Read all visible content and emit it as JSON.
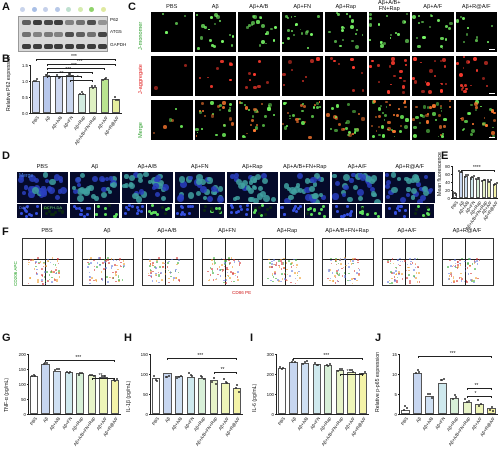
{
  "panels": {
    "a": "A",
    "b": "B",
    "c": "C",
    "d": "D",
    "e": "E",
    "f": "F",
    "g": "G",
    "h": "H",
    "i": "I",
    "j": "J"
  },
  "groups_short": [
    "PBS",
    "Aβ",
    "Aβ+A/B",
    "Aβ+FN",
    "Aβ+Rap",
    "Aβ+A/B+FN+Rap",
    "Aβ+A/F",
    "Aβ+R@A/F"
  ],
  "western": {
    "bands": [
      "P62",
      "ATG5",
      "GAPDH"
    ],
    "lane_colors": [
      "#c9d4ec",
      "#a9bfe6",
      "#c5d0ea",
      "#b7c8e8",
      "#bfe0d0",
      "#d6ecb0",
      "#8fd36a",
      "#dfe9a0"
    ]
  },
  "panel_b": {
    "ylabel": "Relative P62 expression",
    "yticks": [
      "0.0",
      "0.5",
      "1.0",
      "1.5"
    ],
    "ylim": [
      0,
      1.5
    ],
    "categories": [
      "PBS",
      "Aβ",
      "Aβ+A/B",
      "Aβ+FN",
      "Aβ+Rap",
      "Aβ+A/B+FN+Rap",
      "Aβ+A/F",
      "Aβ+R@A/F"
    ],
    "values": [
      1.0,
      1.17,
      1.15,
      1.2,
      0.6,
      0.8,
      1.05,
      0.45
    ],
    "sig": [
      "***",
      "***",
      "***",
      "***",
      "**",
      "*"
    ]
  },
  "panel_c": {
    "columns": [
      "PBS",
      "Aβ",
      "Aβ+A/B",
      "Aβ+FN",
      "Aβ+Rap",
      "Aβ+A/B+\nFN+Rap",
      "Aβ+A/F",
      "Aβ+R@A/F"
    ],
    "rows": [
      "J-monomer",
      "J-aggregate",
      "Merge"
    ]
  },
  "panel_d": {
    "columns": [
      "PBS",
      "Aβ",
      "Aβ+A/B",
      "Aβ+FN",
      "Aβ+Rap",
      "Aβ+A/B+FN+Rap",
      "Aβ+A/F",
      "Aβ+R@A/F"
    ],
    "merge_label": "Merge",
    "sub_labels": [
      "DAPI",
      "DCFH-DA"
    ]
  },
  "panel_e": {
    "ylabel": "Mean fluorescence",
    "yticks": [
      "0",
      "20",
      "40",
      "60",
      "80"
    ],
    "ylim": [
      0,
      80
    ],
    "categories": [
      "PBS",
      "Aβ",
      "Aβ+A/B",
      "Aβ+FN",
      "Aβ+Rap",
      "Aβ+A/B+FN+Rap",
      "Aβ+A/F",
      "Aβ+R@A/F"
    ],
    "values": [
      12,
      65,
      55,
      52,
      48,
      45,
      42,
      35
    ],
    "sig": [
      "****"
    ]
  },
  "panel_f": {
    "columns": [
      "PBS",
      "Aβ",
      "Aβ+A/B",
      "Aβ+FN",
      "Aβ+Rap",
      "Aβ+A/B+FN+Rap",
      "Aβ+A/F",
      "Aβ+R@A/F"
    ],
    "xaxis": "CD86 PE",
    "yaxis": "CD206 APC"
  },
  "panel_g": {
    "ylabel": "TNF-α (pg/mL)",
    "yticks": [
      "0",
      "50",
      "100",
      "150",
      "200"
    ],
    "ylim": [
      0,
      200
    ],
    "categories": [
      "PBS",
      "Aβ",
      "Aβ+A/B",
      "Aβ+FN",
      "Aβ+Rap",
      "Aβ+A/B+FN+Rap",
      "Aβ+A/F",
      "Aβ+R@A/F"
    ],
    "values": [
      128,
      168,
      145,
      140,
      136,
      130,
      125,
      112
    ],
    "sig": [
      "***",
      "**"
    ]
  },
  "panel_h": {
    "ylabel": "IL-1β (pg/mL)",
    "yticks": [
      "0",
      "50",
      "100",
      "150"
    ],
    "ylim": [
      0,
      150
    ],
    "categories": [
      "PBS",
      "Aβ",
      "Aβ+A/B",
      "Aβ+FN",
      "Aβ+Rap",
      "Aβ+A/B+FN+Rap",
      "Aβ+A/F",
      "Aβ+R@A/F"
    ],
    "values": [
      90,
      102,
      96,
      93,
      90,
      85,
      78,
      65
    ],
    "sig": [
      "***",
      "**"
    ]
  },
  "panel_i": {
    "ylabel": "IL-6 (pg/mL)",
    "yticks": [
      "0",
      "100",
      "200",
      "300"
    ],
    "ylim": [
      0,
      300
    ],
    "categories": [
      "PBS",
      "Aβ",
      "Aβ+A/B",
      "Aβ+FN",
      "Aβ+Rap",
      "Aβ+A/B+FN+Rap",
      "Aβ+A/F",
      "Aβ+R@A/F"
    ],
    "values": [
      232,
      262,
      256,
      250,
      245,
      218,
      212,
      205
    ],
    "sig": [
      "***",
      "*"
    ]
  },
  "panel_j": {
    "ylabel": "Relative p-p65 expression",
    "yticks": [
      "0",
      "5",
      "10",
      "15"
    ],
    "ylim": [
      0,
      15
    ],
    "categories": [
      "PBS",
      "Aβ",
      "Aβ+A/B",
      "Aβ+FN",
      "Aβ+Rap",
      "Aβ+A/B+FN+Rap",
      "Aβ+A/F",
      "Aβ+R@A/F"
    ],
    "values": [
      1.0,
      10.2,
      4.5,
      7.8,
      4.0,
      3.0,
      2.5,
      1.5
    ],
    "sig": [
      "***",
      "**",
      "*"
    ]
  }
}
